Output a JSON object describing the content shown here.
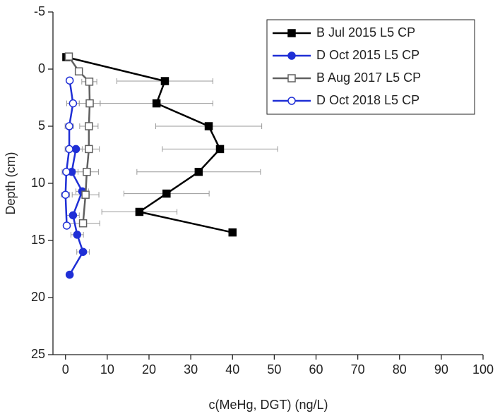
{
  "chart_data": {
    "type": "profile",
    "xlabel": "c(MeHg, DGT) (ng/L)",
    "ylabel": "Depth (cm)",
    "xlim": [
      -3,
      100
    ],
    "xticks": [
      0,
      10,
      20,
      30,
      40,
      50,
      60,
      70,
      80,
      90,
      100
    ],
    "ylim": [
      -5,
      25
    ],
    "yticks": [
      -5,
      0,
      5,
      10,
      15,
      20,
      25
    ],
    "y_inverted": true,
    "legend": "upper right",
    "series": [
      {
        "name": "B Jul 2015 L5 CP",
        "color": "#000000",
        "marker": "square",
        "filled": true,
        "x": [
          0.2,
          23.8,
          21.8,
          34.3,
          37.0,
          31.9,
          24.2,
          17.7,
          40
        ],
        "y": [
          -1.05,
          1.05,
          3.0,
          5.0,
          7.0,
          9.0,
          10.9,
          12.5,
          14.3
        ],
        "errors": [
          null,
          11.5,
          13.5,
          12.7,
          13.8,
          14.8,
          10.2,
          9,
          null
        ]
      },
      {
        "name": "D Oct 2015 L5 CP",
        "color": "#1f2fd6",
        "marker": "circle",
        "filled": true,
        "x": [
          2.5,
          1.5,
          4.0,
          1.8,
          2.8,
          4.2,
          1.0
        ],
        "y": [
          7.0,
          9.0,
          10.7,
          12.8,
          14.5,
          16.0,
          18.0
        ],
        "errors": [
          1.5,
          1.5,
          1.5,
          1.5,
          1.5,
          1.5,
          null
        ]
      },
      {
        "name": "B Aug 2017 L5 CP",
        "color": "#606060",
        "marker": "square",
        "filled": false,
        "x": [
          0.8,
          3.2,
          5.7,
          5.8,
          5.6,
          5.6,
          5.1,
          4.8,
          4.2
        ],
        "y": [
          -1.1,
          0.2,
          1.1,
          3.0,
          5.0,
          7.0,
          9.0,
          11.0,
          13.5
        ],
        "errors": [
          null,
          null,
          1.8,
          2.5,
          2.2,
          2.5,
          2.8,
          3.2,
          4.0
        ]
      },
      {
        "name": "D Oct 2018 L5 CP",
        "color": "#1f2fd6",
        "marker": "circle",
        "filled": false,
        "x": [
          1.0,
          1.8,
          0.9,
          0.9,
          0.2,
          0.0,
          0.3
        ],
        "y": [
          1.0,
          3.0,
          5.0,
          7.0,
          9.0,
          11.0,
          13.7
        ],
        "errors": [
          null,
          1.5,
          1.0,
          1.0,
          1.0,
          1.0,
          null
        ]
      }
    ]
  }
}
